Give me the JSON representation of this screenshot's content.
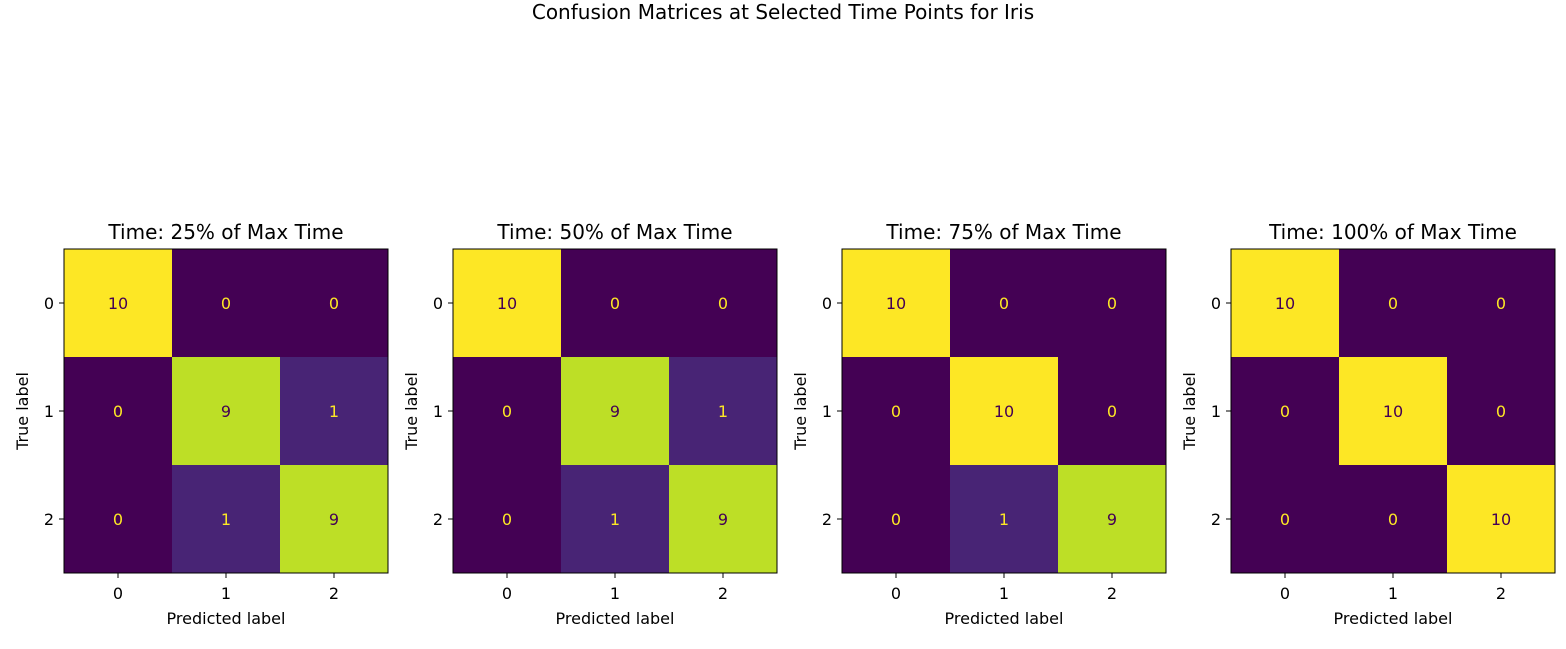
{
  "figure": {
    "title": "Confusion Matrices at Selected Time Points for Iris"
  },
  "colors": {
    "colormap": "viridis",
    "low": "#440154",
    "high": "#fde725",
    "text_on_dark": "#fde725",
    "text_on_light": "#440154"
  },
  "chart_data": [
    {
      "type": "heatmap",
      "title": "Time: 25% of Max Time",
      "xlabel": "Predicted label",
      "ylabel": "True label",
      "x_tick_labels": [
        "0",
        "1",
        "2"
      ],
      "y_tick_labels": [
        "0",
        "1",
        "2"
      ],
      "value_range": [
        0,
        10
      ],
      "matrix": [
        [
          10,
          0,
          0
        ],
        [
          0,
          9,
          1
        ],
        [
          0,
          1,
          9
        ]
      ]
    },
    {
      "type": "heatmap",
      "title": "Time: 50% of Max Time",
      "xlabel": "Predicted label",
      "ylabel": "True label",
      "x_tick_labels": [
        "0",
        "1",
        "2"
      ],
      "y_tick_labels": [
        "0",
        "1",
        "2"
      ],
      "value_range": [
        0,
        10
      ],
      "matrix": [
        [
          10,
          0,
          0
        ],
        [
          0,
          9,
          1
        ],
        [
          0,
          1,
          9
        ]
      ]
    },
    {
      "type": "heatmap",
      "title": "Time: 75% of Max Time",
      "xlabel": "Predicted label",
      "ylabel": "True label",
      "x_tick_labels": [
        "0",
        "1",
        "2"
      ],
      "y_tick_labels": [
        "0",
        "1",
        "2"
      ],
      "value_range": [
        0,
        10
      ],
      "matrix": [
        [
          10,
          0,
          0
        ],
        [
          0,
          10,
          0
        ],
        [
          0,
          1,
          9
        ]
      ]
    },
    {
      "type": "heatmap",
      "title": "Time: 100% of Max Time",
      "xlabel": "Predicted label",
      "ylabel": "True label",
      "x_tick_labels": [
        "0",
        "1",
        "2"
      ],
      "y_tick_labels": [
        "0",
        "1",
        "2"
      ],
      "value_range": [
        0,
        10
      ],
      "matrix": [
        [
          10,
          0,
          0
        ],
        [
          0,
          10,
          0
        ],
        [
          0,
          0,
          10
        ]
      ]
    }
  ]
}
